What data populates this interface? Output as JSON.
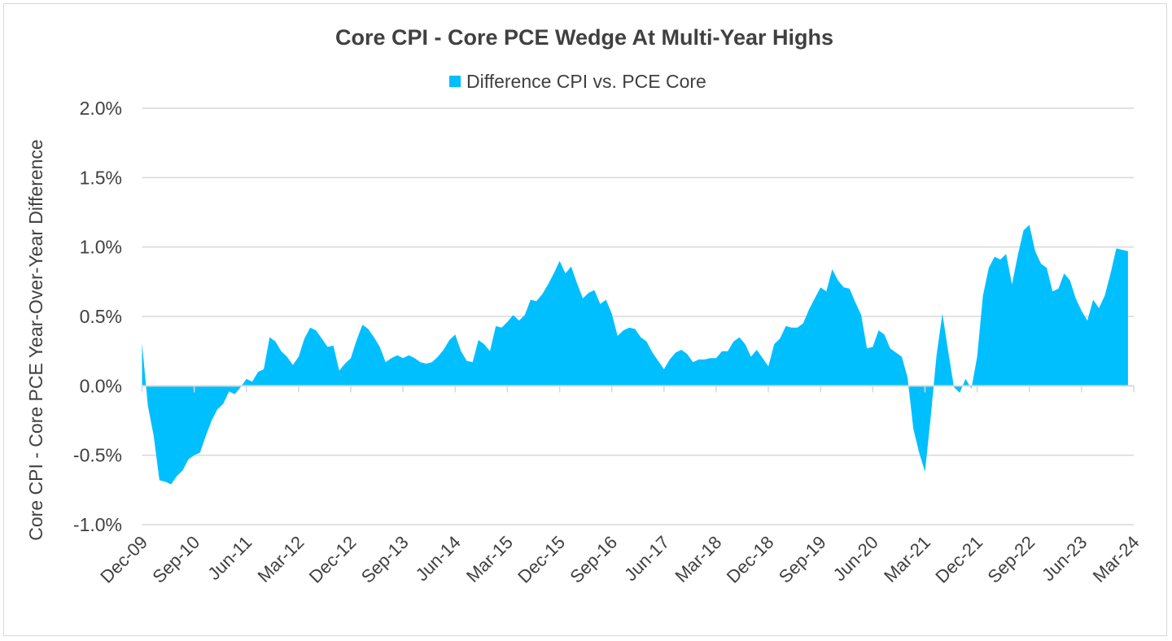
{
  "chart_data": {
    "type": "area",
    "title": "Core CPI - Core PCE Wedge At Multi-Year Highs",
    "ylabel": "Core CPI - Core PCE Year-Over-Year Difference",
    "xlabel": "",
    "ylim": [
      -1.0,
      2.0
    ],
    "yticks": [
      "2.0%",
      "1.5%",
      "1.0%",
      "0.5%",
      "0.0%",
      "-0.5%",
      "-1.0%"
    ],
    "ytick_values": [
      2.0,
      1.5,
      1.0,
      0.5,
      0.0,
      -0.5,
      -1.0
    ],
    "xtick_labels": [
      "Dec-09",
      "Sep-10",
      "Jun-11",
      "Mar-12",
      "Dec-12",
      "Sep-13",
      "Jun-14",
      "Mar-15",
      "Dec-15",
      "Sep-16",
      "Jun-17",
      "Mar-18",
      "Dec-18",
      "Sep-19",
      "Jun-20",
      "Mar-21",
      "Dec-21",
      "Sep-22",
      "Jun-23",
      "Mar-24"
    ],
    "grid": true,
    "legend_position": "top",
    "colors": {
      "series": "#00BFFF",
      "grid": "#d9d9d9",
      "text": "#404040"
    },
    "series": [
      {
        "name": "Difference CPI vs. PCE Core",
        "x": [
          "Dec-09",
          "Jan-10",
          "Feb-10",
          "Mar-10",
          "Apr-10",
          "May-10",
          "Jun-10",
          "Jul-10",
          "Aug-10",
          "Sep-10",
          "Oct-10",
          "Nov-10",
          "Dec-10",
          "Jan-11",
          "Feb-11",
          "Mar-11",
          "Apr-11",
          "May-11",
          "Jun-11",
          "Jul-11",
          "Aug-11",
          "Sep-11",
          "Oct-11",
          "Nov-11",
          "Dec-11",
          "Jan-12",
          "Feb-12",
          "Mar-12",
          "Apr-12",
          "May-12",
          "Jun-12",
          "Jul-12",
          "Aug-12",
          "Sep-12",
          "Oct-12",
          "Nov-12",
          "Dec-12",
          "Jan-13",
          "Feb-13",
          "Mar-13",
          "Apr-13",
          "May-13",
          "Jun-13",
          "Jul-13",
          "Aug-13",
          "Sep-13",
          "Oct-13",
          "Nov-13",
          "Dec-13",
          "Jan-14",
          "Feb-14",
          "Mar-14",
          "Apr-14",
          "May-14",
          "Jun-14",
          "Jul-14",
          "Aug-14",
          "Sep-14",
          "Oct-14",
          "Nov-14",
          "Dec-14",
          "Jan-15",
          "Feb-15",
          "Mar-15",
          "Apr-15",
          "May-15",
          "Jun-15",
          "Jul-15",
          "Aug-15",
          "Sep-15",
          "Oct-15",
          "Nov-15",
          "Dec-15",
          "Jan-16",
          "Feb-16",
          "Mar-16",
          "Apr-16",
          "May-16",
          "Jun-16",
          "Jul-16",
          "Aug-16",
          "Sep-16",
          "Oct-16",
          "Nov-16",
          "Dec-16",
          "Jan-17",
          "Feb-17",
          "Mar-17",
          "Apr-17",
          "May-17",
          "Jun-17",
          "Jul-17",
          "Aug-17",
          "Sep-17",
          "Oct-17",
          "Nov-17",
          "Dec-17",
          "Jan-18",
          "Feb-18",
          "Mar-18",
          "Apr-18",
          "May-18",
          "Jun-18",
          "Jul-18",
          "Aug-18",
          "Sep-18",
          "Oct-18",
          "Nov-18",
          "Dec-18",
          "Jan-19",
          "Feb-19",
          "Mar-19",
          "Apr-19",
          "May-19",
          "Jun-19",
          "Jul-19",
          "Aug-19",
          "Sep-19",
          "Oct-19",
          "Nov-19",
          "Dec-19",
          "Jan-20",
          "Feb-20",
          "Mar-20",
          "Apr-20",
          "May-20",
          "Jun-20",
          "Jul-20",
          "Aug-20",
          "Sep-20",
          "Oct-20",
          "Nov-20",
          "Dec-20",
          "Jan-21",
          "Feb-21",
          "Mar-21",
          "Apr-21",
          "May-21",
          "Jun-21",
          "Jul-21",
          "Aug-21",
          "Sep-21",
          "Oct-21",
          "Nov-21",
          "Dec-21",
          "Jan-22",
          "Feb-22",
          "Mar-22",
          "Apr-22",
          "May-22",
          "Jun-22",
          "Jul-22",
          "Aug-22",
          "Sep-22",
          "Oct-22",
          "Nov-22",
          "Dec-22",
          "Jan-23",
          "Feb-23",
          "Mar-23",
          "Apr-23",
          "May-23",
          "Jun-23",
          "Jul-23",
          "Aug-23",
          "Sep-23",
          "Oct-23",
          "Nov-23",
          "Dec-23",
          "Jan-24",
          "Feb-24"
        ],
        "values": [
          0.31,
          -0.14,
          -0.36,
          -0.68,
          -0.69,
          -0.71,
          -0.65,
          -0.61,
          -0.53,
          -0.5,
          -0.48,
          -0.36,
          -0.25,
          -0.17,
          -0.13,
          -0.04,
          -0.06,
          -0.01,
          0.05,
          0.03,
          0.1,
          0.12,
          0.35,
          0.32,
          0.25,
          0.21,
          0.15,
          0.21,
          0.34,
          0.42,
          0.4,
          0.34,
          0.28,
          0.29,
          0.11,
          0.16,
          0.2,
          0.33,
          0.44,
          0.41,
          0.35,
          0.28,
          0.17,
          0.2,
          0.22,
          0.2,
          0.22,
          0.2,
          0.17,
          0.16,
          0.17,
          0.21,
          0.26,
          0.33,
          0.37,
          0.25,
          0.18,
          0.17,
          0.33,
          0.3,
          0.25,
          0.43,
          0.42,
          0.46,
          0.51,
          0.47,
          0.51,
          0.62,
          0.61,
          0.66,
          0.73,
          0.81,
          0.9,
          0.81,
          0.86,
          0.74,
          0.63,
          0.67,
          0.69,
          0.59,
          0.62,
          0.52,
          0.36,
          0.4,
          0.42,
          0.41,
          0.35,
          0.32,
          0.24,
          0.18,
          0.12,
          0.19,
          0.24,
          0.26,
          0.23,
          0.17,
          0.19,
          0.19,
          0.2,
          0.2,
          0.25,
          0.25,
          0.32,
          0.35,
          0.3,
          0.21,
          0.26,
          0.2,
          0.14,
          0.3,
          0.34,
          0.43,
          0.42,
          0.42,
          0.45,
          0.55,
          0.63,
          0.71,
          0.68,
          0.84,
          0.76,
          0.71,
          0.7,
          0.6,
          0.51,
          0.27,
          0.28,
          0.4,
          0.37,
          0.27,
          0.24,
          0.21,
          0.06,
          -0.31,
          -0.48,
          -0.62,
          -0.22,
          0.22,
          0.52,
          0.25,
          -0.01,
          -0.05,
          0.05,
          -0.02,
          0.21,
          0.65,
          0.85,
          0.93,
          0.91,
          0.95,
          0.73,
          0.94,
          1.12,
          1.16,
          0.97,
          0.88,
          0.85,
          0.68,
          0.7,
          0.81,
          0.76,
          0.63,
          0.54,
          0.47,
          0.62,
          0.56,
          0.65,
          0.81,
          0.99,
          0.98,
          0.97
        ]
      }
    ]
  }
}
